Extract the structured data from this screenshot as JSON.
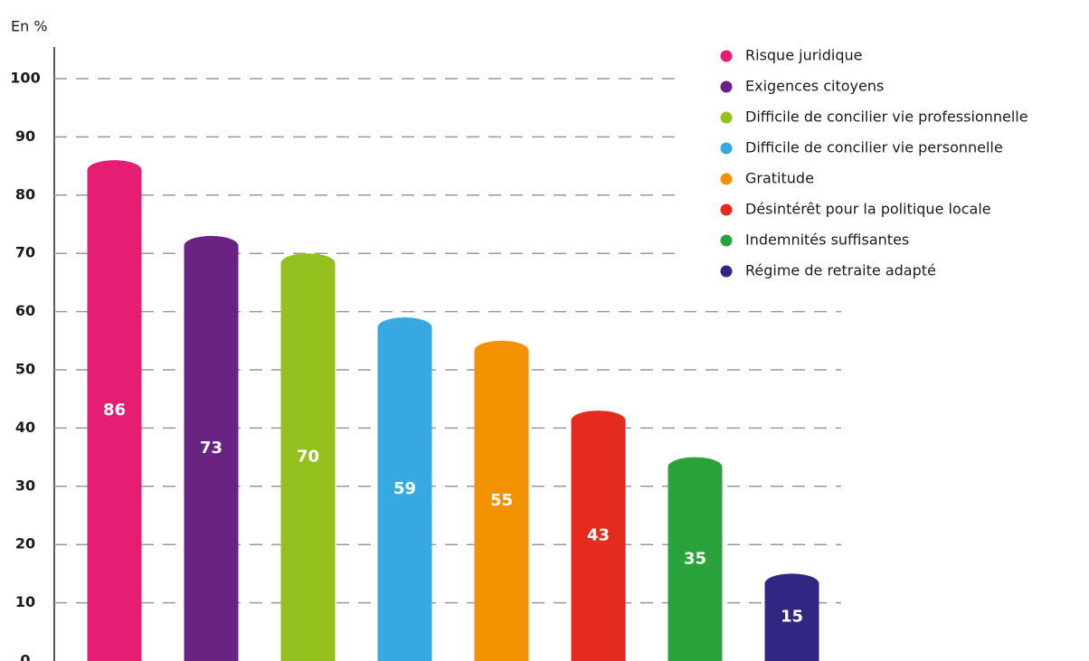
{
  "chart_data": {
    "type": "bar",
    "y_axis_label": "En %",
    "categories": [
      "Risque juridique",
      "Exigences citoyens",
      "Difficile de concilier vie professionnelle",
      "Difficile de concilier vie personnelle",
      "Gratitude",
      "Désintérêt pour la politique locale",
      "Indemnités suffisantes",
      "Régime de retraite adapté"
    ],
    "values": [
      86,
      73,
      70,
      59,
      55,
      43,
      35,
      15
    ],
    "colors": [
      "#e61e73",
      "#6a2382",
      "#95c11f",
      "#36a9e1",
      "#f39200",
      "#e52b1e",
      "#27a33a",
      "#312783"
    ],
    "ylim": [
      0,
      100
    ],
    "yticks": [
      0,
      10,
      20,
      30,
      40,
      50,
      60,
      70,
      80,
      90,
      100
    ],
    "grid": true,
    "legend": "top-right"
  }
}
